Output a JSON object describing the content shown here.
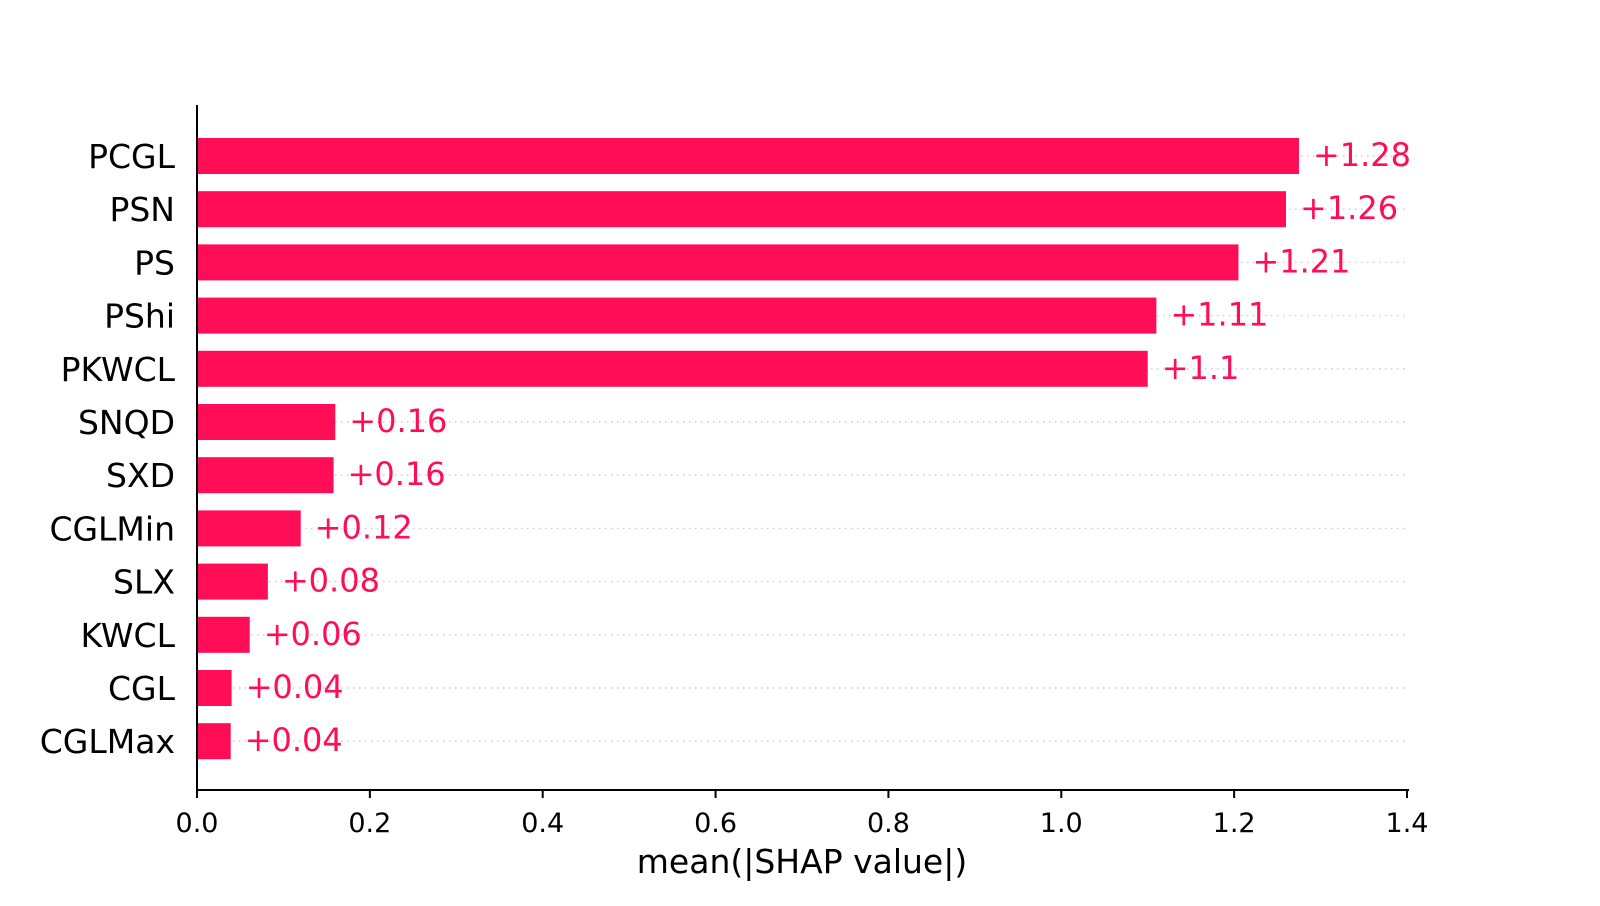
{
  "chart_data": {
    "type": "bar",
    "orientation": "horizontal",
    "title": "",
    "xlabel": "mean(|SHAP value|)",
    "ylabel": "",
    "xlim": [
      0.0,
      1.4
    ],
    "xticks": [
      0.0,
      0.2,
      0.4,
      0.6,
      0.8,
      1.0,
      1.2,
      1.4
    ],
    "xtick_labels": [
      "0.0",
      "0.2",
      "0.4",
      "0.6",
      "0.8",
      "1.0",
      "1.2",
      "1.4"
    ],
    "categories": [
      "PCGL",
      "PSN",
      "PS",
      "PShi",
      "PKWCL",
      "SNQD",
      "SXD",
      "CGLMin",
      "SLX",
      "KWCL",
      "CGL",
      "CGLMax"
    ],
    "values": [
      1.275,
      1.26,
      1.205,
      1.11,
      1.1,
      0.16,
      0.158,
      0.12,
      0.082,
      0.061,
      0.04,
      0.039
    ],
    "value_labels": [
      "+1.28",
      "+1.26",
      "+1.21",
      "+1.11",
      "+1.1",
      "+0.16",
      "+0.16",
      "+0.12",
      "+0.08",
      "+0.06",
      "+0.04",
      "+0.04"
    ],
    "grid": "dotted horizontal guide per bar",
    "legend": "none",
    "colors": {
      "bar": "#ff0d57",
      "label": "#ff0d57",
      "axis": "#000000",
      "guide": "#cccccc"
    }
  }
}
